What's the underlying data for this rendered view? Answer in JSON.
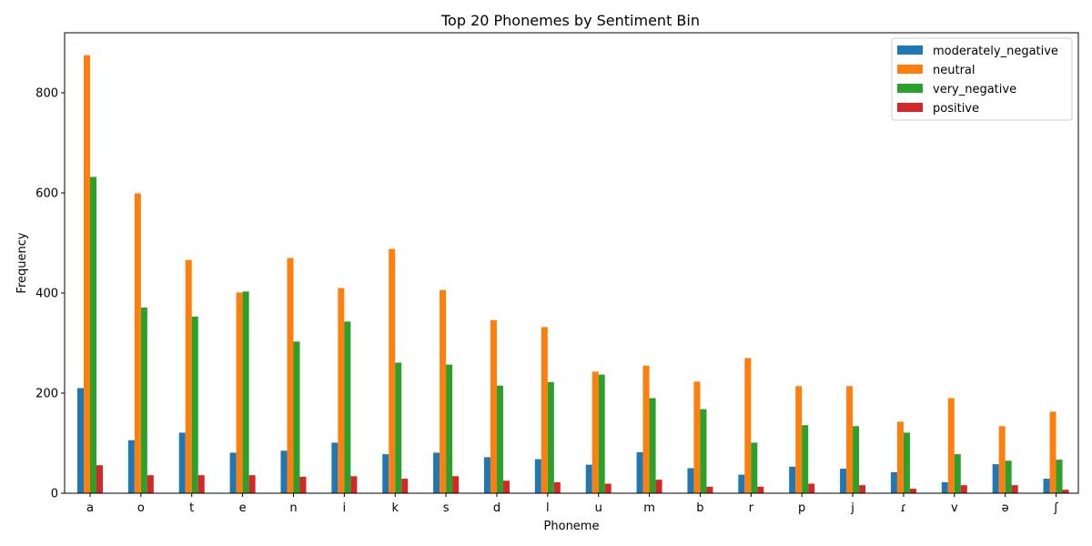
{
  "chart_data": {
    "type": "bar",
    "title": "Top 20 Phonemes by Sentiment Bin",
    "xlabel": "Phoneme",
    "ylabel": "Frequency",
    "ylim": [
      0,
      920
    ],
    "yticks": [
      0,
      200,
      400,
      600,
      800
    ],
    "legend_position": "top-right",
    "grid": false,
    "categories": [
      "a",
      "o",
      "t",
      "e",
      "n",
      "i",
      "k",
      "s",
      "d",
      "l",
      "u",
      "m",
      "b",
      "r",
      "p",
      "j",
      "ɾ",
      "v",
      "ə",
      "ʃ"
    ],
    "series": [
      {
        "name": "moderately_negative",
        "color": "#1f77b4",
        "values": [
          210,
          106,
          121,
          81,
          85,
          101,
          78,
          81,
          72,
          68,
          57,
          82,
          50,
          37,
          53,
          49,
          42,
          22,
          58,
          29
        ]
      },
      {
        "name": "neutral",
        "color": "#ff7f0e",
        "values": [
          875,
          599,
          466,
          401,
          470,
          410,
          488,
          406,
          346,
          332,
          243,
          255,
          223,
          270,
          214,
          214,
          143,
          190,
          134,
          163
        ]
      },
      {
        "name": "very_negative",
        "color": "#2ca02c",
        "values": [
          632,
          371,
          353,
          403,
          303,
          343,
          261,
          257,
          215,
          222,
          237,
          190,
          168,
          101,
          136,
          134,
          121,
          78,
          65,
          67
        ]
      },
      {
        "name": "positive",
        "color": "#d62728",
        "values": [
          56,
          36,
          36,
          36,
          33,
          34,
          29,
          34,
          25,
          22,
          19,
          27,
          13,
          13,
          19,
          16,
          9,
          16,
          16,
          7
        ]
      }
    ]
  }
}
